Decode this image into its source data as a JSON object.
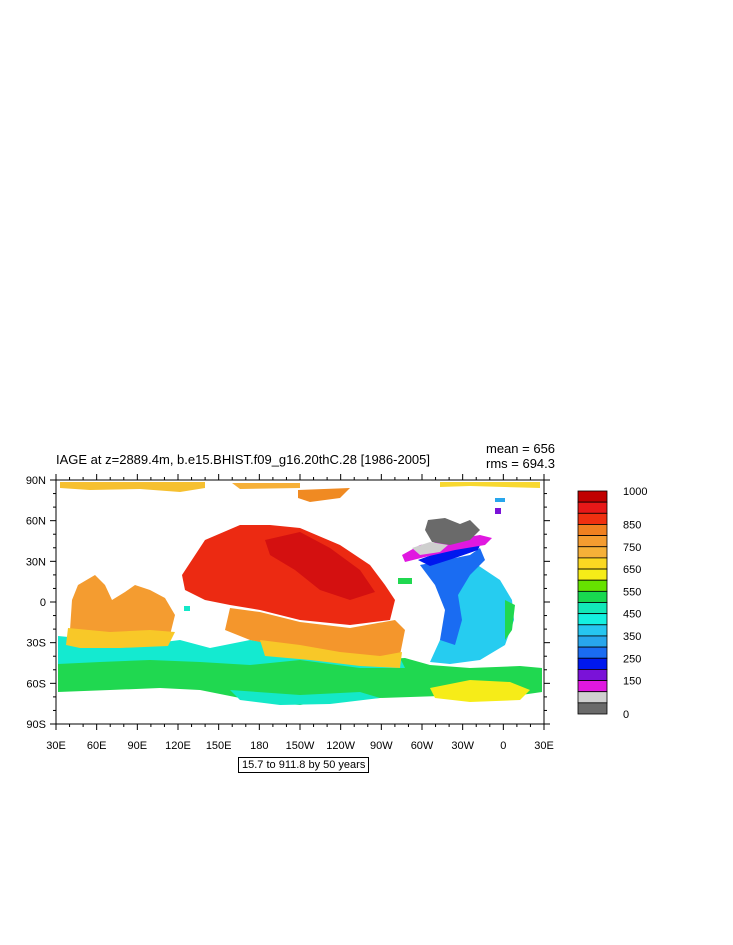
{
  "title": "IAGE at z=2889.4m, b.e15.BHIST.f09_g16.20thC.28 [1986-2005]",
  "stats": {
    "mean": "mean = 656",
    "rms": "rms = 694.3"
  },
  "note": "15.7 to 911.8 by 50 years",
  "map": {
    "x_ticks": [
      "30E",
      "60E",
      "90E",
      "120E",
      "150E",
      "180",
      "150W",
      "120W",
      "90W",
      "60W",
      "30W",
      "0",
      "30E"
    ],
    "y_ticks": [
      "90N",
      "60N",
      "30N",
      "0",
      "30S",
      "60S",
      "90S"
    ]
  },
  "colorbar": {
    "colors": [
      "#c00000",
      "#e81818",
      "#f03010",
      "#f08020",
      "#f49c30",
      "#f6b038",
      "#fbd822",
      "#f6ec18",
      "#66e200",
      "#18d850",
      "#12e8b8",
      "#14f0e0",
      "#26c6f0",
      "#28a6ec",
      "#1a6cf2",
      "#0018ee",
      "#7a12d8",
      "#e018e0",
      "#cfcfcf",
      "#6a6a6a"
    ],
    "labels": [
      "1000",
      "850",
      "750",
      "650",
      "550",
      "450",
      "350",
      "250",
      "150",
      "0"
    ]
  }
}
